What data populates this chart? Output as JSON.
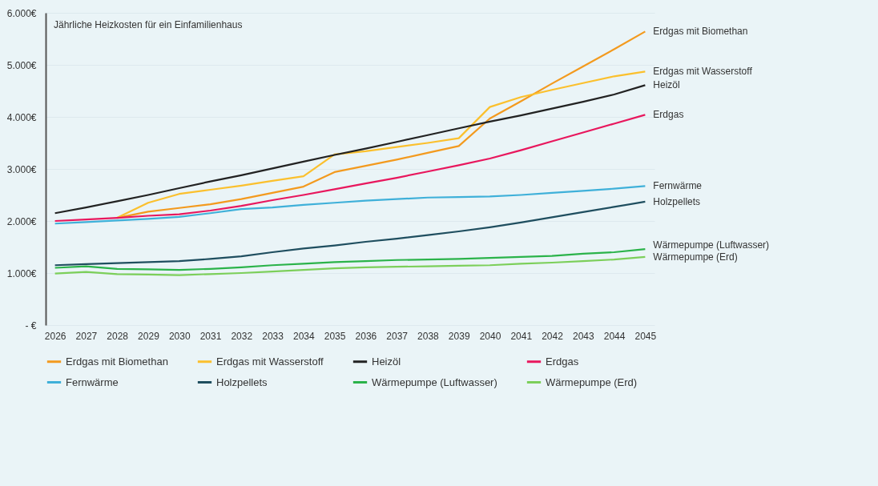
{
  "chart_data": {
    "type": "line",
    "title": "Jährliche Heizkosten für ein Einfamilienhaus",
    "categories": [
      "2026",
      "2027",
      "2028",
      "2029",
      "2030",
      "2031",
      "2032",
      "2033",
      "2034",
      "2035",
      "2036",
      "2037",
      "2038",
      "2039",
      "2040",
      "2041",
      "2042",
      "2043",
      "2044",
      "2045"
    ],
    "ylim": [
      0,
      6000
    ],
    "yticks": [
      {
        "value": 0,
        "label": "- €"
      },
      {
        "value": 1000,
        "label": "1.000€"
      },
      {
        "value": 2000,
        "label": "2.000€"
      },
      {
        "value": 3000,
        "label": "3.000€"
      },
      {
        "value": 4000,
        "label": "4.000€"
      },
      {
        "value": 5000,
        "label": "5.000€"
      },
      {
        "value": 6000,
        "label": "6.000€"
      }
    ],
    "grid": "y",
    "legend": "bottom",
    "line_style": "solid",
    "series": [
      {
        "name": "Erdgas mit Biomethan",
        "color": "#f39a1e",
        "values": [
          null,
          null,
          2060,
          2180,
          2250,
          2320,
          2420,
          2540,
          2660,
          2940,
          3060,
          3180,
          3310,
          3440,
          3970,
          4300,
          4640,
          4970,
          5300,
          5640
        ]
      },
      {
        "name": "Erdgas mit Wasserstoff",
        "color": "#fbc02d",
        "values": [
          null,
          null,
          2060,
          2350,
          2520,
          2600,
          2680,
          2770,
          2860,
          3280,
          3340,
          3420,
          3500,
          3590,
          4190,
          4380,
          4520,
          4650,
          4780,
          4870
        ]
      },
      {
        "name": "Heizöl",
        "color": "#222222",
        "values": [
          2150,
          2260,
          2380,
          2500,
          2630,
          2760,
          2880,
          3010,
          3140,
          3270,
          3390,
          3520,
          3650,
          3780,
          3910,
          4030,
          4160,
          4290,
          4430,
          4610
        ]
      },
      {
        "name": "Erdgas",
        "color": "#e8175d",
        "values": [
          2000,
          2030,
          2060,
          2100,
          2130,
          2200,
          2290,
          2400,
          2500,
          2610,
          2720,
          2830,
          2950,
          3070,
          3200,
          3360,
          3530,
          3700,
          3870,
          4040
        ]
      },
      {
        "name": "Fernwärme",
        "color": "#3fb0d9",
        "values": [
          1950,
          1980,
          2010,
          2040,
          2080,
          2150,
          2230,
          2260,
          2310,
          2350,
          2390,
          2420,
          2450,
          2460,
          2470,
          2500,
          2540,
          2580,
          2620,
          2670
        ]
      },
      {
        "name": "Holzpellets",
        "color": "#1f4e5f",
        "values": [
          1150,
          1170,
          1190,
          1210,
          1230,
          1270,
          1320,
          1400,
          1470,
          1530,
          1600,
          1660,
          1730,
          1800,
          1880,
          1970,
          2070,
          2170,
          2270,
          2370
        ]
      },
      {
        "name": "Wärmepumpe (Luftwasser)",
        "color": "#2bb34a",
        "values": [
          1100,
          1130,
          1080,
          1070,
          1060,
          1080,
          1110,
          1150,
          1180,
          1210,
          1230,
          1250,
          1260,
          1270,
          1290,
          1310,
          1330,
          1370,
          1400,
          1460
        ]
      },
      {
        "name": "Wärmepumpe (Erd)",
        "color": "#7ccf5a",
        "values": [
          990,
          1020,
          980,
          970,
          960,
          980,
          1000,
          1030,
          1060,
          1090,
          1110,
          1120,
          1130,
          1140,
          1150,
          1180,
          1200,
          1230,
          1260,
          1310
        ]
      }
    ]
  }
}
